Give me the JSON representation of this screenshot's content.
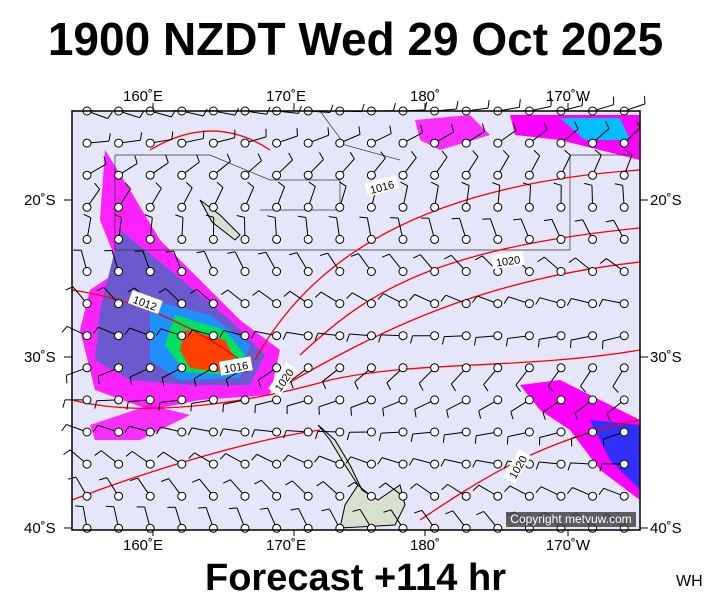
{
  "title": "1900 NZDT Wed 29 Oct 2025",
  "footer": "Forecast +114 hr",
  "corner_label": "WH",
  "copyright": "Copyright metvuw.com",
  "lon_labels": [
    "160˚E",
    "170˚E",
    "180˚",
    "170˚W"
  ],
  "lat_labels": [
    "20˚S",
    "30˚S",
    "40˚S"
  ],
  "isobar_labels": [
    "1016",
    "1020",
    "1012",
    "1016",
    "1020",
    "1020"
  ],
  "colors": {
    "background": "#e6e6fa",
    "isobar": "#ff0000",
    "rain_light": "#ff00ff",
    "rain_mid": "#3030ff",
    "rain_heavy": "#00ff60",
    "rain_max": "#ff3000"
  }
}
